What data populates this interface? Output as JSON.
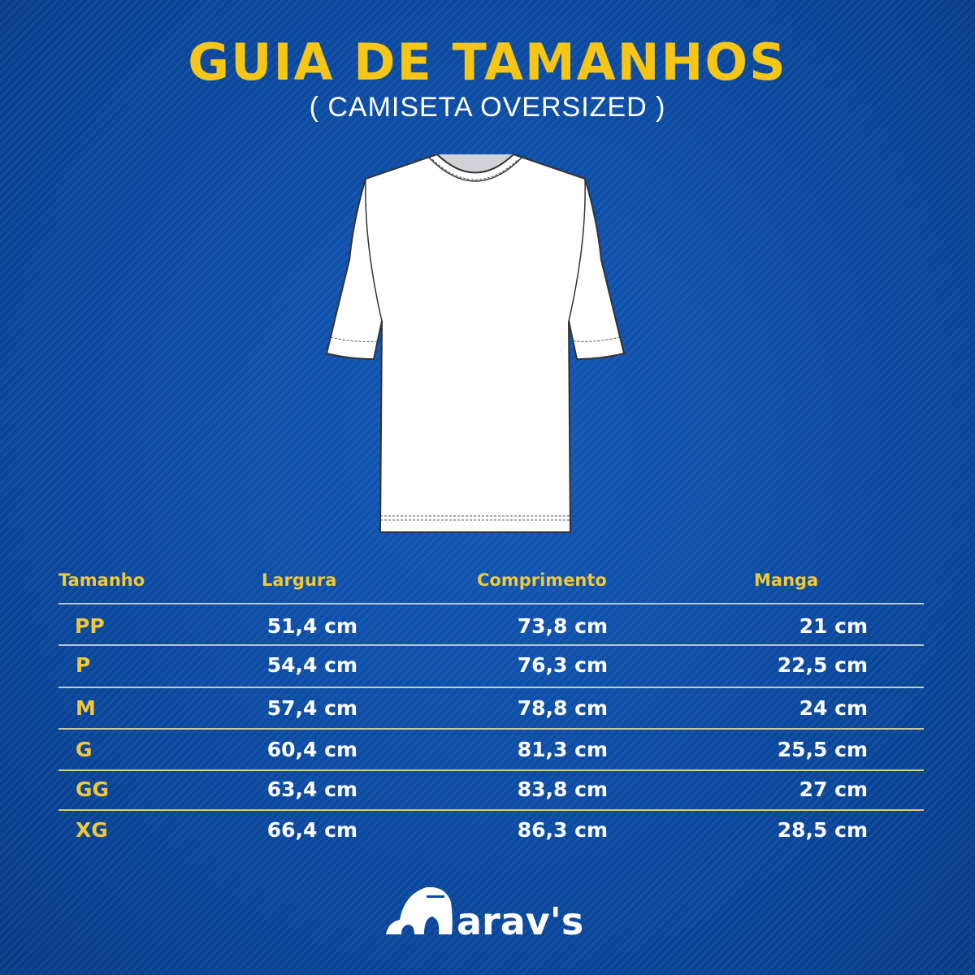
{
  "title": "GUIA DE TAMANHOS",
  "subtitle": "( CAMISETA OVERSIZED )",
  "illustration": "oversized-tshirt-flat-sketch",
  "colors": {
    "accent": "#f5c518",
    "background": "#0b4aa0",
    "text": "#ffffff"
  },
  "table": {
    "headers": [
      "Tamanho",
      "Largura",
      "Comprimento",
      "Manga"
    ],
    "rows": [
      [
        "PP",
        "51,4 cm",
        "73,8 cm",
        "21 cm"
      ],
      [
        "P",
        "54,4 cm",
        "76,3 cm",
        "22,5 cm"
      ],
      [
        "M",
        "57,4 cm",
        "78,8 cm",
        "24 cm"
      ],
      [
        "G",
        "60,4 cm",
        "81,3 cm",
        "25,5 cm"
      ],
      [
        "GG",
        "63,4 cm",
        "83,8 cm",
        "27 cm"
      ],
      [
        "XG",
        "66,4 cm",
        "86,3 cm",
        "28,5 cm"
      ]
    ]
  },
  "brand": {
    "logo_text": "Marav's"
  }
}
